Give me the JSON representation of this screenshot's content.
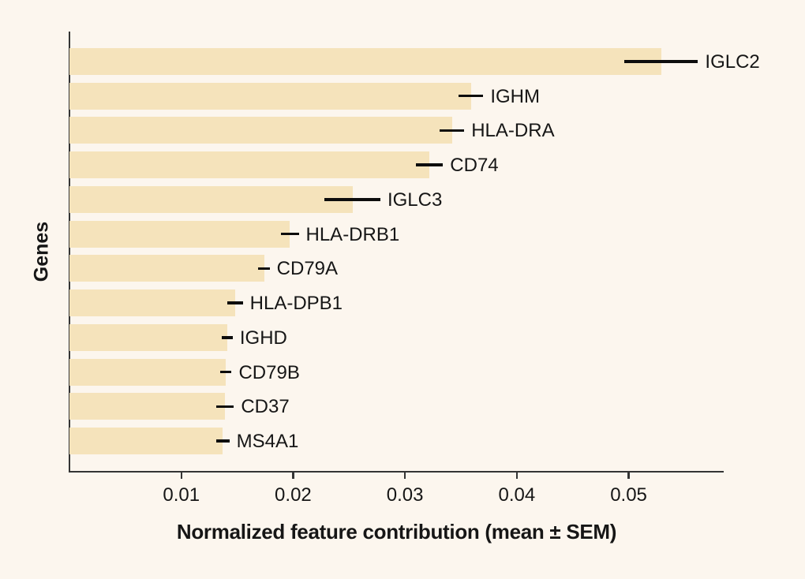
{
  "figure": {
    "background_color": "#fcf6ee",
    "bar_color": "#f5e3bb",
    "axis_color": "#343434",
    "text_color": "#161616",
    "error_bar_color": "#0d0d0d"
  },
  "chart_data": {
    "type": "bar",
    "orientation": "horizontal",
    "title": "",
    "xlabel": "Normalized feature contribution (mean ± SEM)",
    "ylabel": "Genes",
    "xlim": [
      0,
      0.0585
    ],
    "xtick_values": [
      0.01,
      0.02,
      0.03,
      0.04,
      0.05
    ],
    "xtick_labels": [
      "0.01",
      "0.02",
      "0.03",
      "0.04",
      "0.05"
    ],
    "grid": false,
    "legend": false,
    "error_bars": "SEM, horizontal, no caps",
    "categories": [
      "IGLC2",
      "IGHM",
      "HLA-DRA",
      "CD74",
      "IGLC3",
      "HLA-DRB1",
      "CD79A",
      "HLA-DPB1",
      "IGHD",
      "CD79B",
      "CD37",
      "MS4A1"
    ],
    "series": [
      {
        "gene": "IGLC2",
        "value": 0.0529,
        "sem": 0.0033
      },
      {
        "gene": "IGHM",
        "value": 0.0359,
        "sem": 0.0011
      },
      {
        "gene": "HLA-DRA",
        "value": 0.0342,
        "sem": 0.0011
      },
      {
        "gene": "CD74",
        "value": 0.0322,
        "sem": 0.0012
      },
      {
        "gene": "IGLC3",
        "value": 0.0253,
        "sem": 0.0025
      },
      {
        "gene": "HLA-DRB1",
        "value": 0.0197,
        "sem": 0.0008
      },
      {
        "gene": "CD79A",
        "value": 0.0174,
        "sem": 0.0005
      },
      {
        "gene": "HLA-DPB1",
        "value": 0.0148,
        "sem": 0.0007
      },
      {
        "gene": "IGHD",
        "value": 0.0141,
        "sem": 0.0005
      },
      {
        "gene": "CD79B",
        "value": 0.014,
        "sem": 0.0005
      },
      {
        "gene": "CD37",
        "value": 0.0139,
        "sem": 0.0008
      },
      {
        "gene": "MS4A1",
        "value": 0.0137,
        "sem": 0.0006
      }
    ]
  }
}
